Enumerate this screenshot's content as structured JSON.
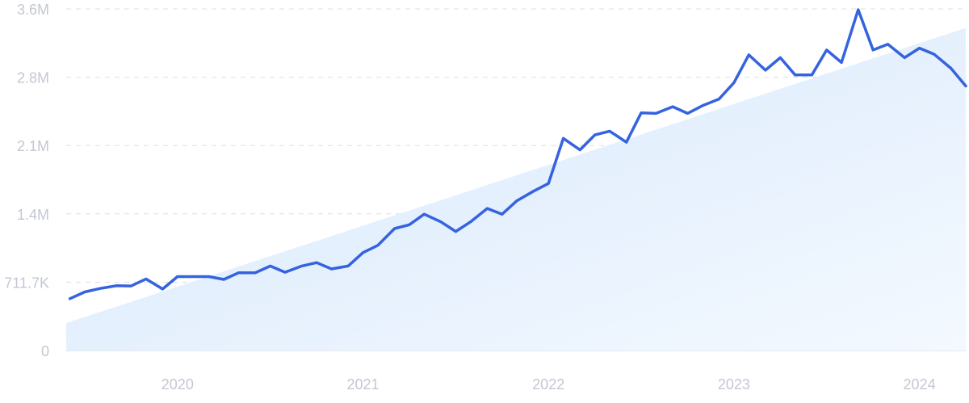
{
  "chart_data": {
    "type": "line",
    "title": "",
    "xlabel": "",
    "ylabel": "",
    "x_ticks": [
      {
        "label": "2020",
        "year": 2020.0
      },
      {
        "label": "2021",
        "year": 2021.0
      },
      {
        "label": "2022",
        "year": 2022.0
      },
      {
        "label": "2023",
        "year": 2023.0
      },
      {
        "label": "2024",
        "year": 2024.0
      }
    ],
    "y_ticks": [
      {
        "label": "0",
        "value": 0
      },
      {
        "label": "711.7K",
        "value": 711700
      },
      {
        "label": "1.4M",
        "value": 1423400
      },
      {
        "label": "2.1M",
        "value": 2135100
      },
      {
        "label": "2.8M",
        "value": 2846800
      },
      {
        "label": "3.6M",
        "value": 3558500
      }
    ],
    "ylim": [
      0,
      3558500
    ],
    "xlim": [
      2019.4,
      2024.25
    ],
    "grid": true,
    "series": [
      {
        "points": [
          [
            2019.42,
            540000
          ],
          [
            2019.5,
            610000
          ],
          [
            2019.58,
            645000
          ],
          [
            2019.67,
            675000
          ],
          [
            2019.75,
            672000
          ],
          [
            2019.83,
            745000
          ],
          [
            2019.92,
            640000
          ],
          [
            2020.0,
            770000
          ],
          [
            2020.08,
            770000
          ],
          [
            2020.17,
            770000
          ],
          [
            2020.25,
            740000
          ],
          [
            2020.33,
            810000
          ],
          [
            2020.42,
            810000
          ],
          [
            2020.5,
            880000
          ],
          [
            2020.58,
            815000
          ],
          [
            2020.67,
            880000
          ],
          [
            2020.75,
            915000
          ],
          [
            2020.83,
            850000
          ],
          [
            2020.92,
            880000
          ],
          [
            2021.0,
            1020000
          ],
          [
            2021.08,
            1095000
          ],
          [
            2021.17,
            1270000
          ],
          [
            2021.25,
            1310000
          ],
          [
            2021.33,
            1420000
          ],
          [
            2021.42,
            1340000
          ],
          [
            2021.5,
            1240000
          ],
          [
            2021.58,
            1340000
          ],
          [
            2021.67,
            1480000
          ],
          [
            2021.75,
            1420000
          ],
          [
            2021.83,
            1560000
          ],
          [
            2021.92,
            1660000
          ],
          [
            2022.0,
            1740000
          ],
          [
            2022.08,
            2210000
          ],
          [
            2022.17,
            2090000
          ],
          [
            2022.25,
            2245000
          ],
          [
            2022.33,
            2285000
          ],
          [
            2022.42,
            2170000
          ],
          [
            2022.5,
            2475000
          ],
          [
            2022.58,
            2470000
          ],
          [
            2022.67,
            2540000
          ],
          [
            2022.75,
            2470000
          ],
          [
            2022.83,
            2550000
          ],
          [
            2022.92,
            2620000
          ],
          [
            2023.0,
            2790000
          ],
          [
            2023.08,
            3080000
          ],
          [
            2023.17,
            2920000
          ],
          [
            2023.25,
            3050000
          ],
          [
            2023.33,
            2870000
          ],
          [
            2023.42,
            2870000
          ],
          [
            2023.5,
            3130000
          ],
          [
            2023.58,
            3000000
          ],
          [
            2023.67,
            3550000
          ],
          [
            2023.75,
            3130000
          ],
          [
            2023.83,
            3190000
          ],
          [
            2023.92,
            3050000
          ],
          [
            2024.0,
            3150000
          ],
          [
            2024.08,
            3085000
          ],
          [
            2024.17,
            2940000
          ],
          [
            2024.25,
            2755000
          ]
        ],
        "color": "#3563e0"
      }
    ],
    "trend": {
      "start": [
        2019.4,
        285000
      ],
      "end": [
        2024.25,
        3360000
      ],
      "color": "#dbe9fb"
    }
  }
}
